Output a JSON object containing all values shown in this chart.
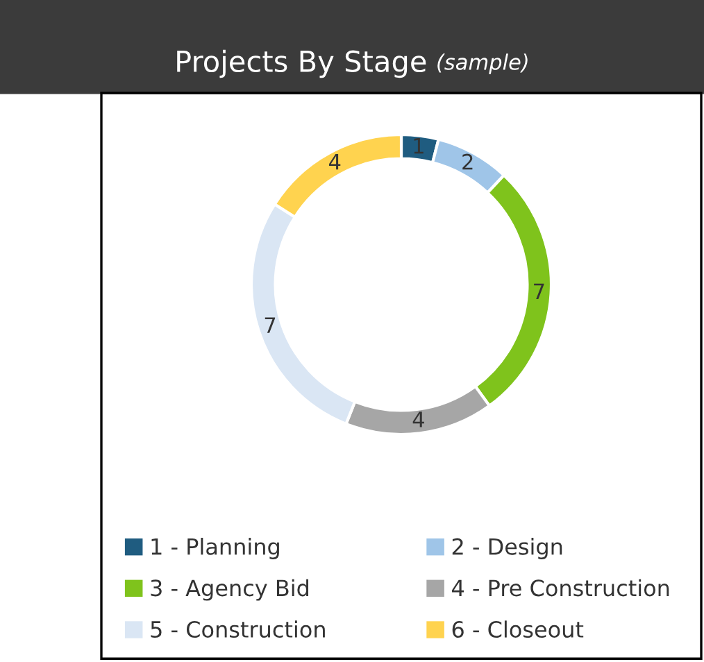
{
  "chart_data": {
    "type": "donut",
    "title": "Projects By Stage",
    "subtitle": "(sample)",
    "categories": [
      "1 - Planning",
      "2 - Design",
      "3 - Agency Bid",
      "4 - Pre Construction",
      "5 - Construction",
      "6 - Closeout"
    ],
    "values": [
      1,
      2,
      7,
      4,
      7,
      4
    ],
    "colors": [
      "#1f5c80",
      "#9fc5e8",
      "#7fc31c",
      "#a6a6a6",
      "#dae6f4",
      "#ffd34f"
    ],
    "data_labels": true,
    "legend": "bottom"
  }
}
